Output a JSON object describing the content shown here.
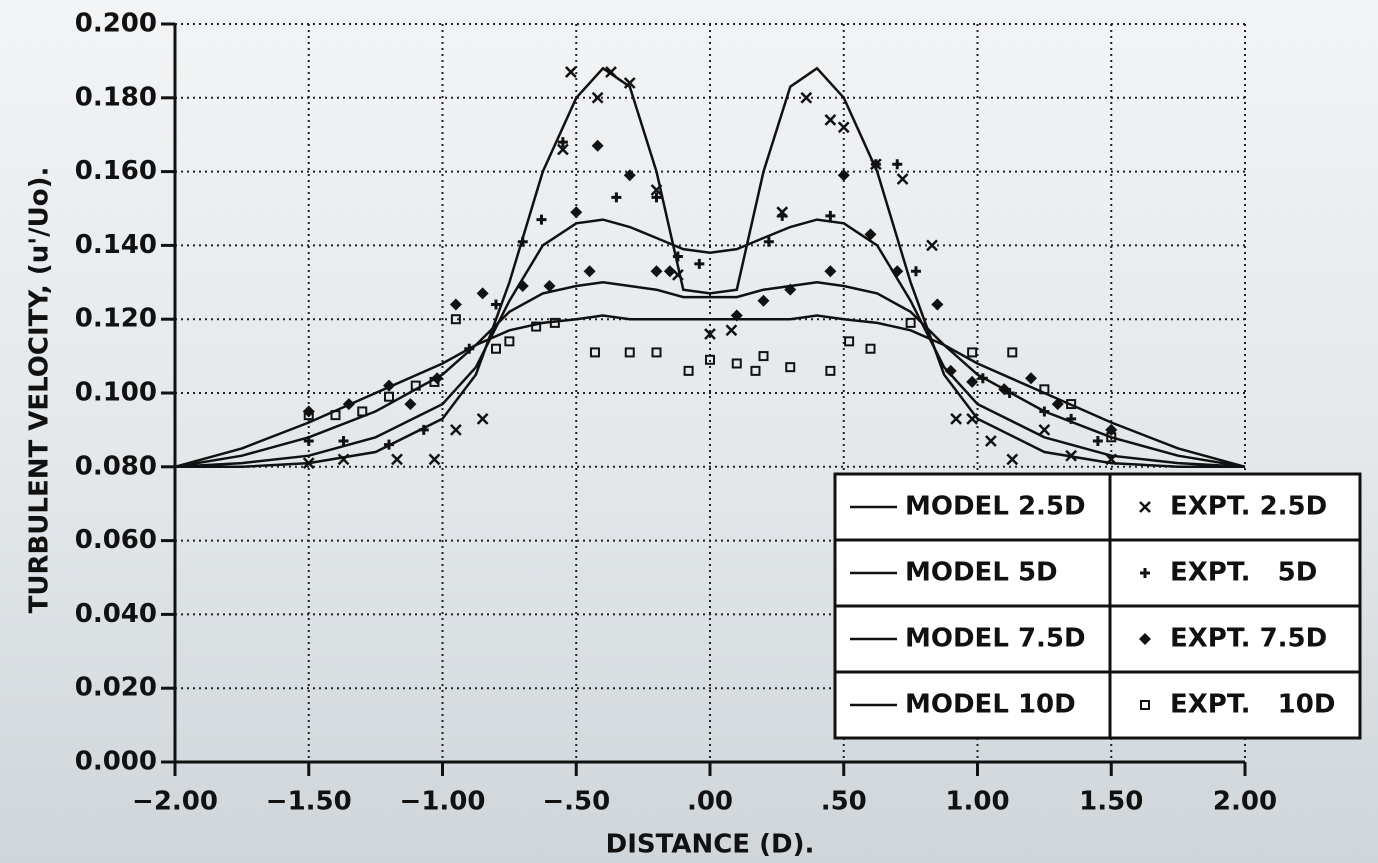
{
  "chart_data": {
    "type": "line",
    "x_label": "DISTANCE (D).",
    "y_label": "TURBULENT VELOCITY, (u'/Uo).",
    "xlim": [
      -2,
      2
    ],
    "ylim": [
      0,
      0.2
    ],
    "xticks": [
      {
        "value": -2,
        "label": "−2.00"
      },
      {
        "value": -1.5,
        "label": "−1.50"
      },
      {
        "value": -1,
        "label": "−1.00"
      },
      {
        "value": -0.5,
        "label": "−.50"
      },
      {
        "value": 0,
        "label": ".00"
      },
      {
        "value": 0.5,
        "label": ".50"
      },
      {
        "value": 1,
        "label": "1.00"
      },
      {
        "value": 1.5,
        "label": "1.50"
      },
      {
        "value": 2,
        "label": "2.00"
      }
    ],
    "yticks": [
      {
        "value": 0,
        "label": "0.000"
      },
      {
        "value": 0.02,
        "label": "0.020"
      },
      {
        "value": 0.04,
        "label": "0.040"
      },
      {
        "value": 0.06,
        "label": "0.060"
      },
      {
        "value": 0.08,
        "label": "0.080"
      },
      {
        "value": 0.1,
        "label": "0.100"
      },
      {
        "value": 0.12,
        "label": "0.120"
      },
      {
        "value": 0.14,
        "label": "0.140"
      },
      {
        "value": 0.16,
        "label": "0.160"
      },
      {
        "value": 0.18,
        "label": "0.180"
      },
      {
        "value": 0.2,
        "label": "0.200"
      }
    ],
    "grid": true,
    "legend": "lower right",
    "series": [
      {
        "name": "MODEL 2.5D",
        "color": "#111111",
        "x": [
          -2,
          -1.75,
          -1.5,
          -1.25,
          -1,
          -0.875,
          -0.75,
          -0.625,
          -0.5,
          -0.4,
          -0.3,
          -0.2,
          -0.1,
          0,
          0.1,
          0.2,
          0.3,
          0.4,
          0.5,
          0.625,
          0.75,
          0.875,
          1,
          1.25,
          1.5,
          1.75,
          2
        ],
        "values": [
          0.08,
          0.08,
          0.081,
          0.084,
          0.093,
          0.105,
          0.13,
          0.16,
          0.18,
          0.188,
          0.183,
          0.16,
          0.128,
          0.127,
          0.128,
          0.16,
          0.183,
          0.188,
          0.18,
          0.16,
          0.13,
          0.105,
          0.093,
          0.084,
          0.081,
          0.08,
          0.08
        ]
      },
      {
        "name": "MODEL 5D",
        "color": "#111111",
        "x": [
          -2,
          -1.75,
          -1.5,
          -1.25,
          -1,
          -0.875,
          -0.75,
          -0.625,
          -0.5,
          -0.4,
          -0.3,
          -0.2,
          -0.1,
          0,
          0.1,
          0.2,
          0.3,
          0.4,
          0.5,
          0.625,
          0.75,
          0.875,
          1,
          1.25,
          1.5,
          1.75,
          2
        ],
        "values": [
          0.08,
          0.081,
          0.083,
          0.088,
          0.097,
          0.107,
          0.125,
          0.14,
          0.146,
          0.147,
          0.145,
          0.142,
          0.139,
          0.138,
          0.139,
          0.142,
          0.145,
          0.147,
          0.146,
          0.14,
          0.125,
          0.107,
          0.097,
          0.088,
          0.083,
          0.081,
          0.08
        ]
      },
      {
        "name": "MODEL 7.5D",
        "color": "#111111",
        "x": [
          -2,
          -1.75,
          -1.5,
          -1.25,
          -1,
          -0.875,
          -0.75,
          -0.625,
          -0.5,
          -0.4,
          -0.3,
          -0.2,
          -0.1,
          0,
          0.1,
          0.2,
          0.3,
          0.4,
          0.5,
          0.625,
          0.75,
          0.875,
          1,
          1.25,
          1.5,
          1.75,
          2
        ],
        "values": [
          0.08,
          0.083,
          0.088,
          0.095,
          0.105,
          0.113,
          0.122,
          0.127,
          0.129,
          0.13,
          0.129,
          0.128,
          0.126,
          0.126,
          0.126,
          0.128,
          0.129,
          0.13,
          0.129,
          0.127,
          0.122,
          0.113,
          0.105,
          0.095,
          0.088,
          0.083,
          0.08
        ]
      },
      {
        "name": "MODEL 10D",
        "color": "#111111",
        "x": [
          -2,
          -1.75,
          -1.5,
          -1.25,
          -1,
          -0.875,
          -0.75,
          -0.625,
          -0.5,
          -0.4,
          -0.3,
          -0.2,
          -0.1,
          0,
          0.1,
          0.2,
          0.3,
          0.4,
          0.5,
          0.625,
          0.75,
          0.875,
          1,
          1.25,
          1.5,
          1.75,
          2
        ],
        "values": [
          0.08,
          0.085,
          0.092,
          0.1,
          0.108,
          0.113,
          0.117,
          0.119,
          0.12,
          0.121,
          0.12,
          0.12,
          0.12,
          0.12,
          0.12,
          0.12,
          0.12,
          0.121,
          0.12,
          0.119,
          0.117,
          0.113,
          0.108,
          0.1,
          0.092,
          0.085,
          0.08
        ]
      },
      {
        "name": "EXPT. 2.5D",
        "color": "#111111",
        "marker": "x",
        "x": [
          -1.5,
          -1.37,
          -1.17,
          -1.03,
          -0.95,
          -0.85,
          -0.55,
          -0.52,
          -0.42,
          -0.37,
          -0.3,
          -0.2,
          -0.12,
          0,
          0.08,
          0.27,
          0.36,
          0.45,
          0.5,
          0.62,
          0.72,
          0.83,
          0.92,
          0.98,
          1.05,
          1.13,
          1.25,
          1.35,
          1.5
        ],
        "values": [
          0.081,
          0.082,
          0.082,
          0.082,
          0.09,
          0.093,
          0.166,
          0.187,
          0.18,
          0.187,
          0.184,
          0.155,
          0.132,
          0.116,
          0.117,
          0.149,
          0.18,
          0.174,
          0.172,
          0.162,
          0.158,
          0.14,
          0.093,
          0.093,
          0.087,
          0.082,
          0.09,
          0.083,
          0.082
        ]
      },
      {
        "name": "EXPT.   5D",
        "color": "#111111",
        "marker": "plus",
        "x": [
          -1.5,
          -1.37,
          -1.2,
          -1.07,
          -0.9,
          -0.8,
          -0.7,
          -0.63,
          -0.55,
          -0.35,
          -0.2,
          -0.12,
          -0.04,
          0.22,
          0.27,
          0.45,
          0.62,
          0.7,
          0.77,
          0.85,
          1.02,
          1.12,
          1.25,
          1.35,
          1.45
        ],
        "values": [
          0.087,
          0.087,
          0.086,
          0.09,
          0.112,
          0.124,
          0.141,
          0.147,
          0.168,
          0.153,
          0.153,
          0.137,
          0.135,
          0.141,
          0.148,
          0.148,
          0.162,
          0.162,
          0.133,
          0.124,
          0.104,
          0.1,
          0.095,
          0.093,
          0.087
        ]
      },
      {
        "name": "EXPT. 7.5D",
        "color": "#111111",
        "marker": "diamond",
        "x": [
          -1.5,
          -1.35,
          -1.2,
          -1.12,
          -1.02,
          -0.95,
          -0.85,
          -0.7,
          -0.6,
          -0.5,
          -0.45,
          -0.42,
          -0.3,
          -0.2,
          -0.15,
          0.1,
          0.2,
          0.3,
          0.45,
          0.5,
          0.6,
          0.7,
          0.85,
          0.9,
          0.98,
          1.1,
          1.2,
          1.3,
          1.5
        ],
        "values": [
          0.095,
          0.097,
          0.102,
          0.097,
          0.104,
          0.124,
          0.127,
          0.129,
          0.129,
          0.149,
          0.133,
          0.167,
          0.159,
          0.133,
          0.133,
          0.121,
          0.125,
          0.128,
          0.133,
          0.159,
          0.143,
          0.133,
          0.124,
          0.106,
          0.103,
          0.101,
          0.104,
          0.097,
          0.09
        ]
      },
      {
        "name": "EXPT.   10D",
        "color": "#111111",
        "marker": "square",
        "x": [
          -1.5,
          -1.4,
          -1.3,
          -1.2,
          -1.1,
          -1.03,
          -0.95,
          -0.8,
          -0.75,
          -0.65,
          -0.58,
          -0.43,
          -0.3,
          -0.2,
          -0.08,
          0,
          0.1,
          0.17,
          0.2,
          0.3,
          0.45,
          0.52,
          0.6,
          0.75,
          0.98,
          1.13,
          1.25,
          1.35,
          1.5
        ],
        "values": [
          0.094,
          0.094,
          0.095,
          0.099,
          0.102,
          0.103,
          0.12,
          0.112,
          0.114,
          0.118,
          0.119,
          0.111,
          0.111,
          0.111,
          0.106,
          0.109,
          0.108,
          0.106,
          0.11,
          0.107,
          0.106,
          0.114,
          0.112,
          0.119,
          0.111,
          0.111,
          0.101,
          0.097,
          0.088
        ]
      }
    ]
  }
}
